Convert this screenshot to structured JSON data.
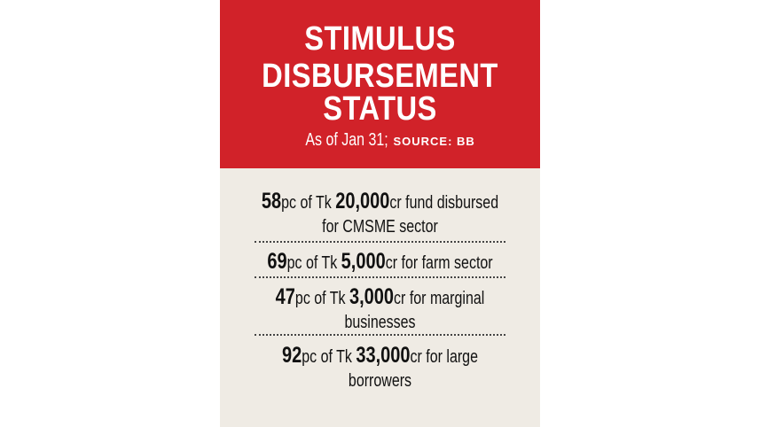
{
  "header": {
    "title_lines": [
      "STIMULUS",
      "DISBURSEMENT",
      "STATUS"
    ],
    "date": "As of Jan 31;",
    "source": "SOURCE: BB"
  },
  "items": [
    {
      "pct": "58",
      "mid": "pc of Tk ",
      "amount": "20,000",
      "rest": "cr fund disbursed",
      "line2": "for CMSME sector"
    },
    {
      "pct": "69",
      "mid": "pc of Tk ",
      "amount": "5,000",
      "rest": "cr for farm sector",
      "line2": ""
    },
    {
      "pct": "47",
      "mid": "pc of Tk ",
      "amount": "3,000",
      "rest": "cr for marginal",
      "line2": "businesses"
    },
    {
      "pct": "92",
      "mid": "pc of Tk ",
      "amount": "33,000",
      "rest": "cr for large",
      "line2": "borrowers"
    }
  ],
  "colors": {
    "header_bg": "#d12229",
    "body_bg": "#efebe4",
    "text": "#111111"
  }
}
